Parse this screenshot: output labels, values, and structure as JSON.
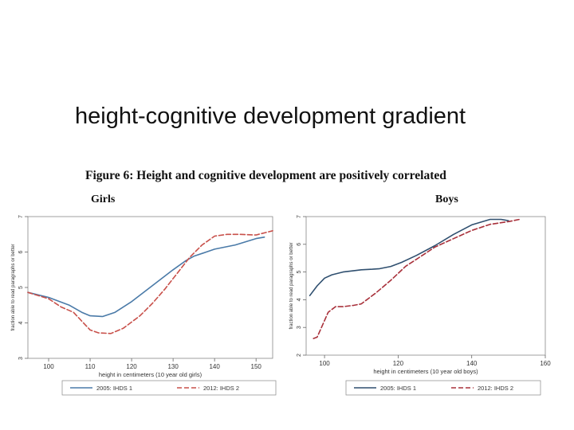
{
  "slide": {
    "title": "height-cognitive development gradient"
  },
  "figure": {
    "title": "Figure 6: Height and cognitive development are positively correlated"
  },
  "chart_data": [
    {
      "type": "line",
      "panel_label": "Girls",
      "xlabel": "height in centimeters (10 year old girls)",
      "ylabel": "fraction able to read paragraphs or better",
      "xlim": [
        95,
        154
      ],
      "ylim": [
        3,
        7
      ],
      "xticks": [
        "100",
        "110",
        "120",
        "130",
        "140",
        "150"
      ],
      "yticks": [
        "3",
        "4",
        "5",
        "6",
        "7"
      ],
      "series": [
        {
          "name": "2005: IHDS 1",
          "color": "#4a7aa8",
          "dash": "solid",
          "x": [
            95,
            100,
            105,
            108,
            110,
            113,
            116,
            120,
            125,
            130,
            133,
            135,
            138,
            140,
            145,
            150,
            152
          ],
          "y": [
            4.86,
            4.72,
            4.5,
            4.3,
            4.2,
            4.18,
            4.3,
            4.6,
            5.05,
            5.5,
            5.75,
            5.88,
            6.0,
            6.08,
            6.2,
            6.38,
            6.42
          ]
        },
        {
          "name": "2012: IHDS 2",
          "color": "#c8504a",
          "dash": "dashed",
          "x": [
            95,
            100,
            103,
            106,
            108,
            110,
            112,
            115,
            118,
            122,
            125,
            128,
            131,
            134,
            137,
            140,
            143,
            146,
            150,
            154
          ],
          "y": [
            4.86,
            4.68,
            4.45,
            4.3,
            4.05,
            3.8,
            3.72,
            3.7,
            3.85,
            4.2,
            4.55,
            4.95,
            5.4,
            5.85,
            6.2,
            6.45,
            6.5,
            6.5,
            6.48,
            6.6
          ]
        }
      ]
    },
    {
      "type": "line",
      "panel_label": "Boys",
      "xlabel": "height in centimeters (10 year old boys)",
      "ylabel": "fraction able to read paragraphs or better",
      "xlim": [
        95,
        160
      ],
      "ylim": [
        2,
        7
      ],
      "xticks": [
        "100",
        "120",
        "140",
        "160"
      ],
      "yticks": [
        "2",
        "3",
        "4",
        "5",
        "6",
        "7"
      ],
      "series": [
        {
          "name": "2005: IHDS 1",
          "color": "#2f4f6f",
          "dash": "solid",
          "x": [
            96,
            98,
            100,
            102,
            105,
            108,
            110,
            113,
            115,
            118,
            121,
            125,
            130,
            135,
            140,
            145,
            148,
            150
          ],
          "y": [
            4.15,
            4.5,
            4.78,
            4.9,
            5.0,
            5.05,
            5.08,
            5.1,
            5.12,
            5.2,
            5.35,
            5.6,
            5.95,
            6.35,
            6.7,
            6.9,
            6.9,
            6.85
          ]
        },
        {
          "name": "2012: IHDS 2",
          "color": "#a8303a",
          "dash": "dashed",
          "x": [
            97,
            98,
            99,
            101,
            103,
            105,
            108,
            110,
            114,
            118,
            122,
            126,
            130,
            135,
            140,
            145,
            150,
            153
          ],
          "y": [
            2.6,
            2.65,
            2.95,
            3.55,
            3.75,
            3.75,
            3.8,
            3.85,
            4.25,
            4.7,
            5.2,
            5.55,
            5.9,
            6.2,
            6.5,
            6.72,
            6.82,
            6.9
          ]
        }
      ]
    }
  ]
}
